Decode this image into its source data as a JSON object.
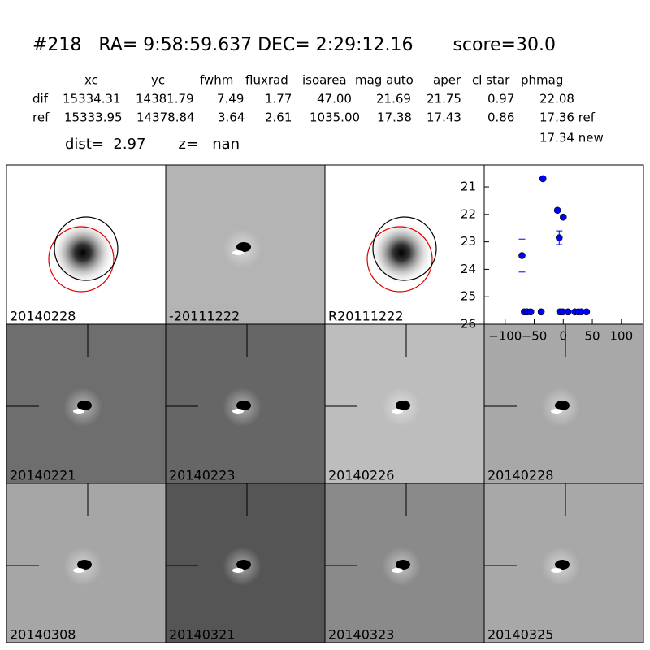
{
  "header": {
    "title": "#218   RA= 9:58:59.637 DEC= 2:29:12.16       score=30.0",
    "columns": [
      "xc",
      "yc",
      "fwhm",
      "fluxrad",
      "isoarea",
      "mag auto",
      "aper",
      "cl star",
      "phmag"
    ],
    "rows": [
      [
        "dif",
        "15334.31",
        "14381.79",
        "7.49",
        "1.77",
        "47.00",
        "21.69",
        "21.75",
        "0.97",
        "22.08"
      ],
      [
        "ref",
        "15333.95",
        "14378.84",
        "3.64",
        "2.61",
        "1035.00",
        "17.38",
        "17.43",
        "0.86",
        "17.36 ref"
      ]
    ],
    "extra": "17.34 new",
    "dist": "dist=  2.97       z=   nan"
  },
  "stamps": [
    {
      "label": "20140228"
    },
    {
      "label": "-20111222"
    },
    {
      "label": "R20111222"
    },
    {
      "label": "20140221"
    },
    {
      "label": "20140223"
    },
    {
      "label": "20140226"
    },
    {
      "label": "20140228",
      "color": "#ff0000"
    },
    {
      "label": "20140308"
    },
    {
      "label": "20140321"
    },
    {
      "label": "20140323"
    },
    {
      "label": "20140325"
    }
  ],
  "chart_data": {
    "type": "scatter",
    "color": "#0000ff",
    "invert_y": true,
    "x": [
      -71,
      -35,
      -10,
      0,
      -7,
      -67,
      -62,
      -56,
      -38,
      -6,
      -1,
      8,
      20,
      26,
      31,
      40
    ],
    "values": [
      23.5,
      20.7,
      21.85,
      22.1,
      22.85,
      25.55,
      25.55,
      25.55,
      25.55,
      25.55,
      25.55,
      25.55,
      25.55,
      25.55,
      25.55,
      25.55
    ],
    "errors": [
      0.6,
      null,
      null,
      null,
      0.25,
      null,
      null,
      null,
      null,
      null,
      null,
      null,
      null,
      null,
      null,
      null
    ],
    "xlim": [
      -136,
      138
    ],
    "ylim": [
      20.2,
      26
    ],
    "xticks": [
      {
        "value": -100,
        "label": "−100"
      },
      {
        "value": -50,
        "label": "−50"
      },
      0,
      50,
      100
    ],
    "yticks": [
      21,
      22,
      23,
      24,
      25,
      26
    ]
  }
}
